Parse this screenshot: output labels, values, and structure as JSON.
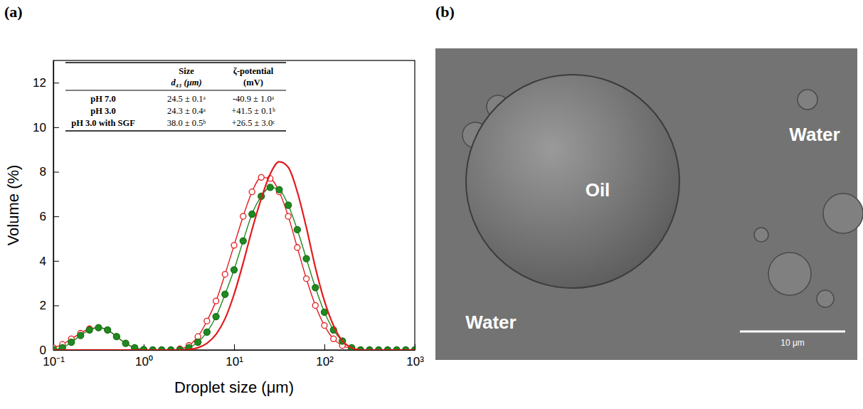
{
  "chart_data": {
    "type": "line",
    "x_label": "Droplet size (μm)",
    "y_label": "Volume (%)",
    "log": "x",
    "grid": false,
    "xlim": [
      0.1,
      1000
    ],
    "xticks": [
      {
        "value": 0.1,
        "label": "10⁻¹"
      },
      {
        "value": 1,
        "label": "10⁰"
      },
      {
        "value": 10,
        "label": "10¹"
      },
      {
        "value": 100,
        "label": "10²"
      },
      {
        "value": 1000,
        "label": "10³"
      }
    ],
    "ylim": [
      0,
      13
    ],
    "yticks": [
      0,
      2,
      4,
      6,
      8,
      10,
      12
    ],
    "x": [
      0.1,
      0.126,
      0.158,
      0.2,
      0.251,
      0.316,
      0.398,
      0.501,
      0.631,
      0.794,
      1,
      1.26,
      1.58,
      2,
      2.51,
      3.16,
      3.98,
      5.01,
      6.31,
      7.94,
      10,
      12.6,
      15.8,
      20,
      25.1,
      31.6,
      39.8,
      50.1,
      63.1,
      79.4,
      100,
      126,
      158,
      200,
      251,
      316,
      398,
      501,
      631,
      794,
      1000
    ],
    "series": [
      {
        "color": "#e31a1c",
        "marker": "open-circle",
        "line_style": "solid",
        "values": [
          0.1,
          0.25,
          0.5,
          0.75,
          0.95,
          1.0,
          0.9,
          0.6,
          0.3,
          0.1,
          0.02,
          0,
          0,
          0,
          0.05,
          0.2,
          0.6,
          1.3,
          2.2,
          3.4,
          4.7,
          6.0,
          7.1,
          7.75,
          7.7,
          7.1,
          6.0,
          4.6,
          3.2,
          2.0,
          1.1,
          0.5,
          0.2,
          0.05,
          0,
          0,
          0,
          0,
          0,
          0,
          0
        ]
      },
      {
        "color": "#1f8a1f",
        "marker": "filled-circle",
        "line_style": "solid",
        "values": [
          0.02,
          0.1,
          0.35,
          0.65,
          0.9,
          1.0,
          0.9,
          0.6,
          0.3,
          0.1,
          0.02,
          0,
          0,
          0,
          0,
          0.1,
          0.35,
          0.8,
          1.5,
          2.5,
          3.6,
          4.9,
          6.1,
          6.9,
          7.3,
          7.2,
          6.5,
          5.4,
          4.1,
          2.8,
          1.7,
          0.9,
          0.4,
          0.1,
          0,
          0,
          0,
          0,
          0,
          0,
          0
        ]
      },
      {
        "color": "#e31a1c",
        "marker": "none",
        "line_style": "solid",
        "values": [
          0,
          0,
          0,
          0,
          0,
          0,
          0,
          0,
          0,
          0,
          0,
          0,
          0,
          0,
          0,
          0.02,
          0.1,
          0.3,
          0.7,
          1.4,
          2.5,
          3.9,
          5.4,
          6.8,
          7.9,
          8.45,
          8.2,
          7.1,
          5.5,
          3.7,
          2.2,
          1.1,
          0.4,
          0.1,
          0,
          0,
          0,
          0,
          0,
          0,
          0
        ]
      }
    ],
    "table": {
      "columns": [
        {
          "lines": [
            "Size",
            "d₄₃ (μm)"
          ]
        },
        {
          "lines": [
            "ζ-potential",
            "(mV)"
          ]
        }
      ],
      "rows": [
        {
          "label": "pH 7.0",
          "cells": [
            "24.5 ± 0.1ᵃ",
            "-40.9 ± 1.0ᵃ"
          ]
        },
        {
          "label": "pH 3.0",
          "cells": [
            "24.3 ± 0.4ᵃ",
            "+41.5 ± 0.1ᵇ"
          ]
        },
        {
          "label": "pH 3.0 with SGF",
          "cells": [
            "38.0 ± 0.5ᵇ",
            "+26.5 ± 3.0ᶜ"
          ]
        }
      ]
    }
  },
  "panel_labels": [
    "(a)",
    "(b)"
  ],
  "image_panel": {
    "labels": [
      "Oil",
      "Water",
      "Water"
    ],
    "scale_bar": "10 μm"
  }
}
